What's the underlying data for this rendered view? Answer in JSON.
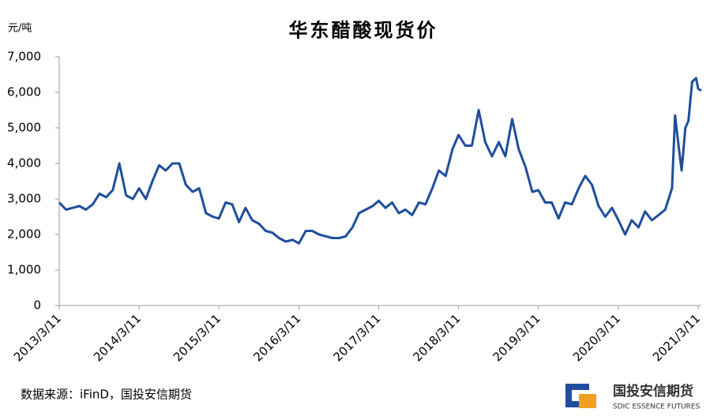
{
  "chart_data": {
    "type": "line",
    "title": "华东醋酸现货价",
    "y_unit": "元/吨",
    "source": "数据来源：iFinD，国投安信期货",
    "x": [
      "2013/3/11",
      "2013/4/11",
      "2013/5/11",
      "2013/6/11",
      "2013/7/11",
      "2013/8/11",
      "2013/9/11",
      "2013/10/11",
      "2013/11/11",
      "2013/12/11",
      "2014/1/11",
      "2014/2/11",
      "2014/3/11",
      "2014/4/11",
      "2014/5/11",
      "2014/6/11",
      "2014/7/11",
      "2014/8/11",
      "2014/9/11",
      "2014/10/11",
      "2014/11/11",
      "2014/12/11",
      "2015/1/11",
      "2015/2/11",
      "2015/3/11",
      "2015/4/11",
      "2015/5/11",
      "2015/6/11",
      "2015/7/11",
      "2015/8/11",
      "2015/9/11",
      "2015/10/11",
      "2015/11/11",
      "2015/12/11",
      "2016/1/11",
      "2016/2/11",
      "2016/3/11",
      "2016/4/11",
      "2016/5/11",
      "2016/6/11",
      "2016/7/11",
      "2016/8/11",
      "2016/9/11",
      "2016/10/11",
      "2016/11/11",
      "2016/12/11",
      "2017/1/11",
      "2017/2/11",
      "2017/3/11",
      "2017/4/11",
      "2017/5/11",
      "2017/6/11",
      "2017/7/11",
      "2017/8/11",
      "2017/9/11",
      "2017/10/11",
      "2017/11/11",
      "2017/12/11",
      "2018/1/11",
      "2018/2/11",
      "2018/3/11",
      "2018/4/11",
      "2018/5/11",
      "2018/6/11",
      "2018/7/11",
      "2018/8/11",
      "2018/9/11",
      "2018/10/11",
      "2018/11/11",
      "2018/12/11",
      "2019/1/11",
      "2019/2/11",
      "2019/3/11",
      "2019/4/11",
      "2019/5/11",
      "2019/6/11",
      "2019/7/11",
      "2019/8/11",
      "2019/9/11",
      "2019/10/11",
      "2019/11/11",
      "2019/12/11",
      "2020/1/11",
      "2020/2/11",
      "2020/3/11",
      "2020/4/11",
      "2020/5/11",
      "2020/6/11",
      "2020/7/11",
      "2020/8/11",
      "2020/9/11",
      "2020/10/11",
      "2020/11/11",
      "2020/11/25",
      "2020/12/11",
      "2020/12/25",
      "2021/1/11",
      "2021/1/25",
      "2021/2/11",
      "2021/3/1",
      "2021/3/11",
      "2021/3/25"
    ],
    "series": [
      {
        "name": "华东醋酸现货价",
        "color": "#1f4e9c",
        "values": [
          2900,
          2700,
          2750,
          2800,
          2700,
          2850,
          3150,
          3050,
          3250,
          4000,
          3100,
          3000,
          3300,
          3000,
          3500,
          3950,
          3800,
          4000,
          4000,
          3400,
          3200,
          3300,
          2600,
          2500,
          2450,
          2900,
          2850,
          2350,
          2750,
          2400,
          2300,
          2100,
          2050,
          1900,
          1800,
          1850,
          1750,
          2100,
          2100,
          2000,
          1950,
          1900,
          1900,
          1950,
          2200,
          2600,
          2700,
          2800,
          2950,
          2750,
          2900,
          2600,
          2700,
          2550,
          2900,
          2850,
          3300,
          3800,
          3650,
          4400,
          4800,
          4500,
          4500,
          5500,
          4600,
          4200,
          4600,
          4200,
          5250,
          4400,
          3900,
          3200,
          3250,
          2900,
          2900,
          2450,
          2900,
          2850,
          3300,
          3650,
          3400,
          2800,
          2500,
          2750,
          2400,
          2000,
          2400,
          2200,
          2650,
          2400,
          2550,
          2700,
          3300,
          5350,
          4500,
          3800,
          5000,
          5200,
          6300,
          6400,
          6100,
          6050
        ]
      }
    ],
    "xlim": [
      "2013/3/11",
      "2021/3/25"
    ],
    "xticks": [
      "2013/3/11",
      "2014/3/11",
      "2015/3/11",
      "2016/3/11",
      "2017/3/11",
      "2018/3/11",
      "2019/3/11",
      "2020/3/11",
      "2021/3/11"
    ],
    "ylim": [
      0,
      7000
    ],
    "yticks": [
      0,
      {
        "value": 1000,
        "label": "1,000"
      },
      {
        "value": 2000,
        "label": "2,000"
      },
      {
        "value": 3000,
        "label": "3,000"
      },
      {
        "value": 4000,
        "label": "4,000"
      },
      {
        "value": 5000,
        "label": "5,000"
      },
      {
        "value": 6000,
        "label": "6,000"
      },
      {
        "value": 7000,
        "label": "7,000"
      }
    ],
    "grid": false
  },
  "logo": {
    "name": "国投安信期货",
    "subtitle": "SDIC ESSENCE FUTURES"
  }
}
